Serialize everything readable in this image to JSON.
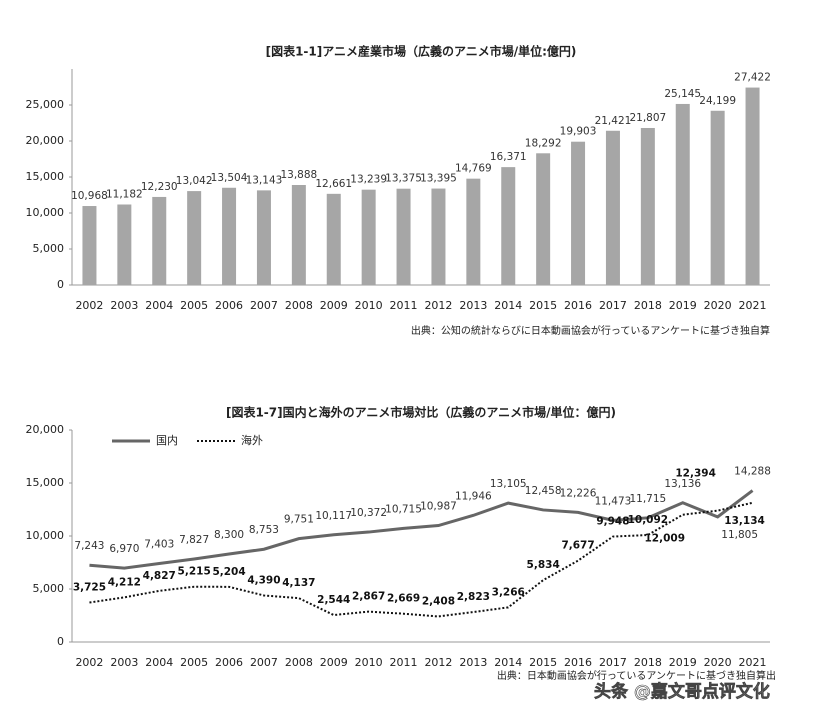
{
  "chart_data": [
    {
      "type": "bar",
      "title": "[図表1-1]アニメ産業市場（広義のアニメ市場/単位:億円)",
      "categories": [
        "2002",
        "2003",
        "2004",
        "2005",
        "2006",
        "2007",
        "2008",
        "2009",
        "2010",
        "2011",
        "2012",
        "2013",
        "2014",
        "2015",
        "2016",
        "2017",
        "2018",
        "2019",
        "2020",
        "2021"
      ],
      "values": [
        10968,
        11182,
        12230,
        13042,
        13504,
        13143,
        13888,
        12661,
        13239,
        13375,
        13395,
        14769,
        16371,
        18292,
        19903,
        21421,
        21807,
        25145,
        24199,
        27422
      ],
      "value_labels": [
        "10,968",
        "11,182",
        "12,230",
        "13,042",
        "13,504",
        "13,143",
        "13,888",
        "12,661",
        "13,239",
        "13,375",
        "13,395",
        "14,769",
        "16,371",
        "18,292",
        "19,903",
        "21,421",
        "21,807",
        "25,145",
        "24,199",
        "27,422"
      ],
      "color": "#a6a6a6",
      "ylim": [
        0,
        30000
      ],
      "yticks": [
        0,
        {
          "value": 5000,
          "label": "5,000"
        },
        {
          "value": 10000,
          "label": "10,000"
        },
        {
          "value": 15000,
          "label": "15,000"
        },
        {
          "value": 20000,
          "label": "20,000"
        },
        {
          "value": 25000,
          "label": "25,000"
        }
      ],
      "grid": false,
      "note": "出典：公知の統計ならびに日本動画協会が行っているアンケートに基づき独自算"
    },
    {
      "type": "line",
      "title": "[図表1-7]国内と海外のアニメ市場対比（広義のアニメ市場/単位：億円)",
      "categories": [
        "2002",
        "2003",
        "2004",
        "2005",
        "2006",
        "2007",
        "2008",
        "2009",
        "2010",
        "2011",
        "2012",
        "2013",
        "2014",
        "2015",
        "2016",
        "2017",
        "2018",
        "2019",
        "2020",
        "2021"
      ],
      "series": [
        {
          "name": "国内",
          "color": "#666666",
          "values": [
            7243,
            6970,
            7403,
            7827,
            8300,
            8753,
            9751,
            10117,
            10372,
            10715,
            10987,
            11946,
            13105,
            12458,
            12226,
            11473,
            11715,
            13136,
            11805,
            14288
          ],
          "value_labels": [
            "7,243",
            "6,970",
            "7,403",
            "7,827",
            "8,300",
            "8,753",
            "9,751",
            "10,117",
            "10,372",
            "10,715",
            "10,987",
            "11,946",
            "13,105",
            "12,458",
            "12,226",
            "11,473",
            "11,715",
            "13,136",
            "11,805",
            "14,288"
          ]
        },
        {
          "name": "海外",
          "color": "#111111",
          "values": [
            3725,
            4212,
            4827,
            5215,
            5204,
            4390,
            4137,
            2544,
            2867,
            2669,
            2408,
            2823,
            3266,
            5834,
            7677,
            9948,
            10092,
            12009,
            12394,
            13134
          ],
          "value_labels": [
            "3,725",
            "4,212",
            "4,827",
            "5,215",
            "5,204",
            "4,390",
            "4,137",
            "2,544",
            "2,867",
            "2,669",
            "2,408",
            "2,823",
            "3,266",
            "5,834",
            "7,677",
            "9,948",
            "10,092",
            "12,009",
            "12,394",
            "13,134"
          ]
        }
      ],
      "ylim": [
        0,
        20000
      ],
      "yticks": [
        0,
        {
          "value": 5000,
          "label": "5,000"
        },
        {
          "value": 10000,
          "label": "10,000"
        },
        {
          "value": 15000,
          "label": "15,000"
        },
        {
          "value": 20000,
          "label": "20,000"
        }
      ],
      "grid": false,
      "legend": "top-left",
      "note": "出典：日本動画協会が行っているアンケートに基づき独自算出"
    }
  ],
  "watermark": "头条 @嘉文哥点评文化"
}
